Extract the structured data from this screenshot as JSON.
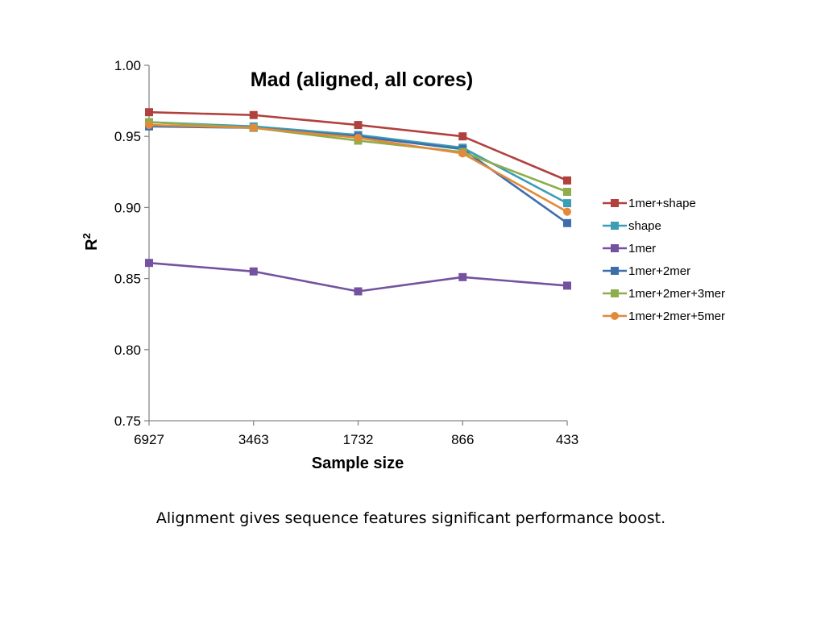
{
  "caption": "Alignment gives sequence features significant performance boost.",
  "chart_data": {
    "type": "line",
    "title": "Mad (aligned, all cores)",
    "xlabel": "Sample size",
    "ylabel": "R",
    "ylabel_superscript": "2",
    "categories": [
      "6927",
      "3463",
      "1732",
      "866",
      "433"
    ],
    "ylim": [
      0.75,
      1.0
    ],
    "yticks": [
      "0.75",
      "0.80",
      "0.85",
      "0.90",
      "0.95",
      "1.00"
    ],
    "grid": false,
    "legend_position": "right",
    "series": [
      {
        "name": "1mer+shape",
        "color": "#b0413e",
        "marker": "square",
        "values": [
          0.967,
          0.965,
          0.958,
          0.95,
          0.919
        ]
      },
      {
        "name": "shape",
        "color": "#3d9db6",
        "marker": "square",
        "values": [
          0.96,
          0.957,
          0.951,
          0.942,
          0.903
        ]
      },
      {
        "name": "1mer",
        "color": "#7452a0",
        "marker": "square",
        "values": [
          0.861,
          0.855,
          0.841,
          0.851,
          0.845
        ]
      },
      {
        "name": "1mer+2mer",
        "color": "#3e6eaa",
        "marker": "square",
        "values": [
          0.957,
          0.956,
          0.95,
          0.941,
          0.889
        ]
      },
      {
        "name": "1mer+2mer+3mer",
        "color": "#8ead4c",
        "marker": "square",
        "values": [
          0.96,
          0.956,
          0.947,
          0.939,
          0.911
        ]
      },
      {
        "name": "1mer+2mer+5mer",
        "color": "#e28a3a",
        "marker": "circle",
        "values": [
          0.958,
          0.956,
          0.949,
          0.938,
          0.897
        ]
      }
    ]
  }
}
